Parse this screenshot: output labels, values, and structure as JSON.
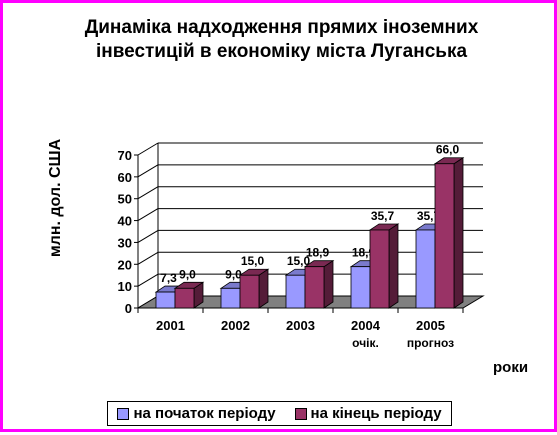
{
  "chart_data": {
    "type": "bar",
    "title_line1": "Динаміка надходження прямих іноземних",
    "title_line2": "інвестицій в економіку міста Луганська",
    "ylabel": "млн. дол. США",
    "xlabel": "роки",
    "categories": [
      {
        "line1": "2001",
        "line2": ""
      },
      {
        "line1": "2002",
        "line2": ""
      },
      {
        "line1": "2003",
        "line2": ""
      },
      {
        "line1": "2004",
        "line2": "очік."
      },
      {
        "line1": "2005",
        "line2": "прогноз"
      }
    ],
    "series": [
      {
        "name": "на початок періоду",
        "color": "#9999ff",
        "values": [
          7.3,
          9.0,
          15.0,
          18.9,
          35.7
        ],
        "labels": [
          "7,3",
          "9,0",
          "15,0",
          "18,9",
          "35,7"
        ]
      },
      {
        "name": "на кінець періоду",
        "color": "#993366",
        "values": [
          9.0,
          15.0,
          18.9,
          35.7,
          66.0
        ],
        "labels": [
          "9,0",
          "15,0",
          "18,9",
          "35,7",
          "66,0"
        ]
      }
    ],
    "ylim": [
      0,
      70
    ],
    "yticks": [
      "0",
      "10",
      "20",
      "30",
      "40",
      "50",
      "60",
      "70"
    ],
    "grid": true,
    "legend_position": "bottom"
  }
}
